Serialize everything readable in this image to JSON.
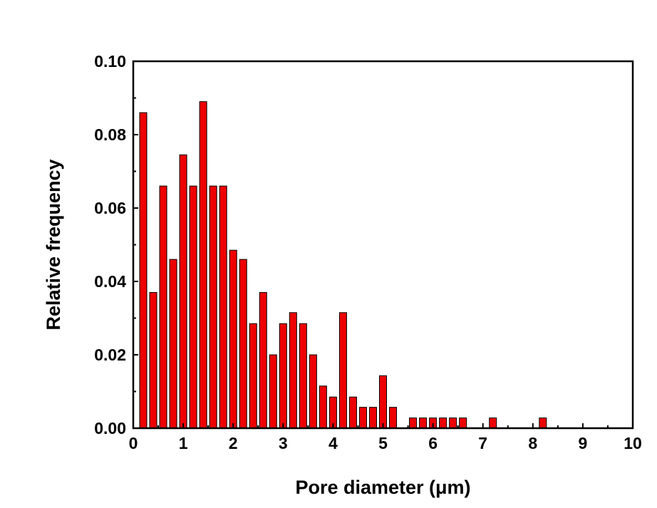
{
  "chart_data": {
    "type": "bar",
    "title": "",
    "xlabel": "Pore diameter (μm)",
    "ylabel": "Relative frequency",
    "xlim": [
      0,
      10
    ],
    "ylim": [
      0,
      0.1
    ],
    "x_ticks": [
      "0",
      "1",
      "2",
      "3",
      "4",
      "5",
      "6",
      "7",
      "8",
      "9",
      "10"
    ],
    "y_ticks": [
      "0.00",
      "0.02",
      "0.04",
      "0.06",
      "0.08",
      "0.10"
    ],
    "bin_width": 0.2,
    "x": [
      0.2,
      0.4,
      0.6,
      0.8,
      1.0,
      1.2,
      1.4,
      1.6,
      1.8,
      2.0,
      2.2,
      2.4,
      2.6,
      2.8,
      3.0,
      3.2,
      3.4,
      3.6,
      3.8,
      4.0,
      4.2,
      4.4,
      4.6,
      4.8,
      5.0,
      5.2,
      5.4,
      5.6,
      5.8,
      6.0,
      6.2,
      6.4,
      6.6,
      6.8,
      7.0,
      7.2,
      7.4,
      7.6,
      7.8,
      8.0,
      8.2
    ],
    "values": [
      0.086,
      0.037,
      0.066,
      0.046,
      0.0745,
      0.066,
      0.089,
      0.066,
      0.066,
      0.0485,
      0.046,
      0.0285,
      0.037,
      0.02,
      0.0285,
      0.0315,
      0.0285,
      0.02,
      0.0115,
      0.0085,
      0.0315,
      0.0085,
      0.0057,
      0.0057,
      0.0143,
      0.0057,
      0.0,
      0.0028,
      0.0028,
      0.0028,
      0.0028,
      0.0028,
      0.0028,
      0.0,
      0.0,
      0.0028,
      0.0,
      0.0,
      0.0,
      0.0,
      0.0028
    ],
    "bar_color": "#ee0000",
    "bar_edge_color": "#000000",
    "grid": false,
    "legend": "none"
  }
}
